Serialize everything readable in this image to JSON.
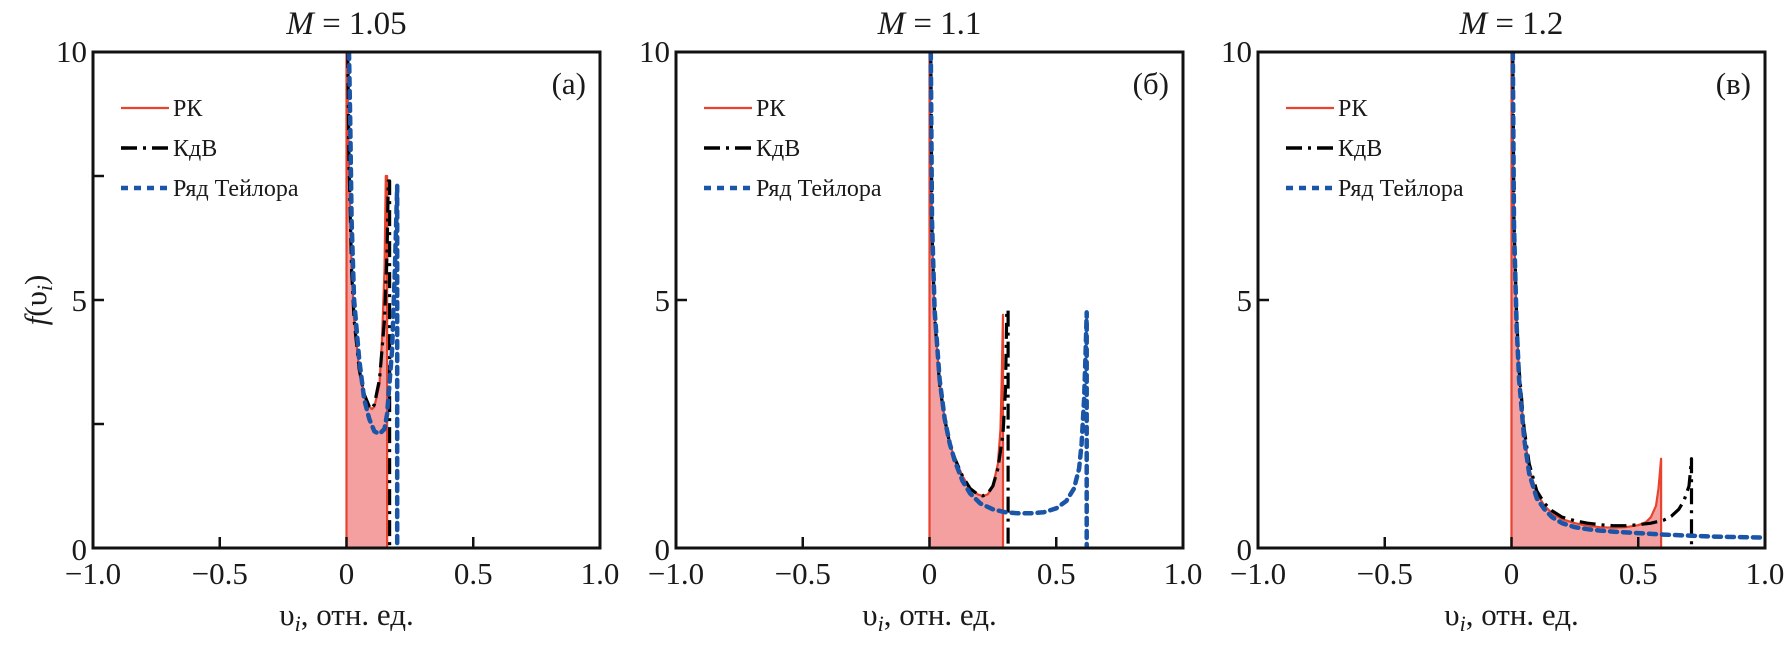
{
  "figure": {
    "ylabel": "f(υ",
    "ylabel_sub": "i",
    "ylabel_close": ")",
    "colors": {
      "rk": "#e8432e",
      "rk_fill": "#f4a0a0",
      "kdv": "#000000",
      "taylor": "#1a55a8",
      "axis": "#111111"
    }
  },
  "chart_data": [
    {
      "type": "line",
      "panel_tag": "(a)",
      "title_var": "M",
      "title_value": "= 1.05",
      "xlabel_var": "υ",
      "xlabel_sub": "i",
      "xlabel_rest": ", отн. ед.",
      "xlim": [
        -1.0,
        1.0
      ],
      "ylim": [
        0,
        10
      ],
      "xticks": [
        -1.0,
        -0.5,
        0,
        0.5,
        1.0
      ],
      "xtick_labels": [
        "−1.0",
        "−0.5",
        "0",
        "0.5",
        "1.0"
      ],
      "yticks": [
        0,
        2.5,
        5,
        7.5,
        10
      ],
      "ytick_labels": [
        "0",
        "",
        "5",
        "",
        "10"
      ],
      "legend": {
        "position": "top-left",
        "entries": [
          "РК",
          "КдВ",
          "Ряд Тейлора"
        ]
      },
      "series": [
        {
          "name": "РК",
          "style": "solid",
          "filled": true,
          "x": [
            0.0,
            0.0,
            0.005,
            0.01,
            0.02,
            0.03,
            0.05,
            0.07,
            0.09,
            0.1,
            0.11,
            0.13,
            0.14,
            0.15,
            0.155,
            0.16,
            0.16
          ],
          "y": [
            0,
            10,
            9.0,
            7.5,
            5.6,
            4.6,
            3.6,
            3.1,
            2.85,
            2.8,
            2.85,
            3.3,
            4.2,
            5.6,
            7.5,
            7.5,
            0
          ]
        },
        {
          "name": "КдВ",
          "style": "dashdot",
          "x": [
            0.005,
            0.01,
            0.02,
            0.03,
            0.05,
            0.07,
            0.09,
            0.1,
            0.11,
            0.13,
            0.15,
            0.16,
            0.165,
            0.17,
            0.17
          ],
          "y": [
            10,
            7.8,
            5.6,
            4.6,
            3.6,
            3.1,
            2.85,
            2.8,
            2.9,
            3.4,
            4.6,
            6.0,
            7.4,
            7.4,
            0
          ]
        },
        {
          "name": "Ряд Тейлора",
          "style": "dotted",
          "x": [
            0.01,
            0.015,
            0.02,
            0.03,
            0.05,
            0.07,
            0.09,
            0.11,
            0.13,
            0.15,
            0.16,
            0.18,
            0.19,
            0.2,
            0.2,
            0.2
          ],
          "y": [
            10,
            8.5,
            6.6,
            5.0,
            3.8,
            3.0,
            2.6,
            2.35,
            2.3,
            2.4,
            2.7,
            4.0,
            5.5,
            7.3,
            3.0,
            0
          ]
        }
      ]
    },
    {
      "type": "line",
      "panel_tag": "(б)",
      "title_var": "M",
      "title_value": "= 1.1",
      "xlabel_var": "υ",
      "xlabel_sub": "i",
      "xlabel_rest": ", отн. ед.",
      "xlim": [
        -1.0,
        1.0
      ],
      "ylim": [
        0,
        10
      ],
      "xticks": [
        -1.0,
        -0.5,
        0,
        0.5,
        1.0
      ],
      "xtick_labels": [
        "−1.0",
        "−0.5",
        "0",
        "0.5",
        "1.0"
      ],
      "yticks": [
        0,
        5,
        10
      ],
      "ytick_labels": [
        "0",
        "5",
        "10"
      ],
      "legend": {
        "position": "top-left",
        "entries": [
          "РК",
          "КдВ",
          "Ряд Тейлора"
        ]
      },
      "series": [
        {
          "name": "РК",
          "style": "solid",
          "filled": true,
          "x": [
            0.0,
            0.0,
            0.005,
            0.01,
            0.02,
            0.04,
            0.06,
            0.08,
            0.1,
            0.13,
            0.16,
            0.19,
            0.21,
            0.23,
            0.25,
            0.27,
            0.28,
            0.285,
            0.29,
            0.29
          ],
          "y": [
            0,
            10,
            8.0,
            6.3,
            4.7,
            3.3,
            2.6,
            2.1,
            1.8,
            1.45,
            1.2,
            1.08,
            1.05,
            1.08,
            1.25,
            1.7,
            2.4,
            3.4,
            4.7,
            0
          ]
        },
        {
          "name": "КдВ",
          "style": "dashdot",
          "x": [
            0.005,
            0.01,
            0.02,
            0.04,
            0.06,
            0.08,
            0.1,
            0.13,
            0.16,
            0.19,
            0.21,
            0.23,
            0.25,
            0.27,
            0.29,
            0.3,
            0.305,
            0.31,
            0.31
          ],
          "y": [
            10,
            6.4,
            4.7,
            3.3,
            2.6,
            2.1,
            1.8,
            1.45,
            1.2,
            1.08,
            1.05,
            1.1,
            1.25,
            1.6,
            2.3,
            3.2,
            4.8,
            4.8,
            0
          ]
        },
        {
          "name": "Ряд Тейлора",
          "style": "dotted",
          "x": [
            0.005,
            0.01,
            0.02,
            0.04,
            0.06,
            0.08,
            0.1,
            0.13,
            0.16,
            0.2,
            0.25,
            0.3,
            0.35,
            0.4,
            0.45,
            0.5,
            0.54,
            0.57,
            0.59,
            0.6,
            0.61,
            0.615,
            0.62,
            0.62,
            0.62
          ],
          "y": [
            10,
            6.6,
            4.8,
            3.4,
            2.6,
            2.1,
            1.75,
            1.35,
            1.1,
            0.9,
            0.78,
            0.72,
            0.7,
            0.7,
            0.72,
            0.8,
            0.95,
            1.2,
            1.6,
            2.1,
            3.0,
            3.8,
            4.75,
            2.0,
            0
          ]
        }
      ]
    },
    {
      "type": "line",
      "panel_tag": "(в)",
      "title_var": "M",
      "title_value": "= 1.2",
      "xlabel_var": "υ",
      "xlabel_sub": "i",
      "xlabel_rest": ", отн. ед.",
      "xlim": [
        -1.0,
        1.0
      ],
      "ylim": [
        0,
        10
      ],
      "xticks": [
        -1.0,
        -0.5,
        0,
        0.5,
        1.0
      ],
      "xtick_labels": [
        "−1.0",
        "−0.5",
        "0",
        "0.5",
        "1.0"
      ],
      "yticks": [
        0,
        5,
        10
      ],
      "ytick_labels": [
        "0",
        "5",
        "10"
      ],
      "legend": {
        "position": "top-left",
        "entries": [
          "РК",
          "КдВ",
          "Ряд Тейлора"
        ]
      },
      "series": [
        {
          "name": "РК",
          "style": "solid",
          "filled": true,
          "x": [
            0.0,
            0.0,
            0.005,
            0.01,
            0.02,
            0.03,
            0.05,
            0.07,
            0.1,
            0.13,
            0.16,
            0.2,
            0.25,
            0.3,
            0.35,
            0.4,
            0.45,
            0.5,
            0.53,
            0.55,
            0.57,
            0.58,
            0.585,
            0.59,
            0.59
          ],
          "y": [
            0,
            10,
            8.5,
            6.5,
            4.6,
            3.5,
            2.3,
            1.6,
            1.1,
            0.85,
            0.7,
            0.58,
            0.5,
            0.45,
            0.42,
            0.41,
            0.42,
            0.46,
            0.52,
            0.62,
            0.85,
            1.2,
            1.5,
            1.8,
            0
          ]
        },
        {
          "name": "КдВ",
          "style": "dashdot",
          "x": [
            0.005,
            0.01,
            0.02,
            0.03,
            0.05,
            0.07,
            0.1,
            0.13,
            0.16,
            0.2,
            0.25,
            0.3,
            0.35,
            0.4,
            0.45,
            0.5,
            0.55,
            0.6,
            0.63,
            0.66,
            0.68,
            0.7,
            0.705,
            0.71,
            0.71
          ],
          "y": [
            10,
            6.6,
            4.7,
            3.6,
            2.4,
            1.7,
            1.15,
            0.9,
            0.75,
            0.62,
            0.55,
            0.5,
            0.47,
            0.45,
            0.45,
            0.47,
            0.5,
            0.56,
            0.64,
            0.78,
            0.95,
            1.25,
            1.5,
            1.8,
            0
          ]
        },
        {
          "name": "Ряд Тейлора",
          "style": "dotted",
          "x": [
            0.005,
            0.01,
            0.02,
            0.03,
            0.05,
            0.07,
            0.1,
            0.13,
            0.16,
            0.2,
            0.25,
            0.3,
            0.35,
            0.4,
            0.5,
            0.6,
            0.7,
            0.8,
            0.9,
            1.0
          ],
          "y": [
            10,
            6.5,
            4.5,
            3.4,
            2.2,
            1.5,
            1.0,
            0.78,
            0.62,
            0.5,
            0.42,
            0.38,
            0.35,
            0.33,
            0.3,
            0.27,
            0.25,
            0.23,
            0.22,
            0.21
          ]
        }
      ]
    }
  ]
}
